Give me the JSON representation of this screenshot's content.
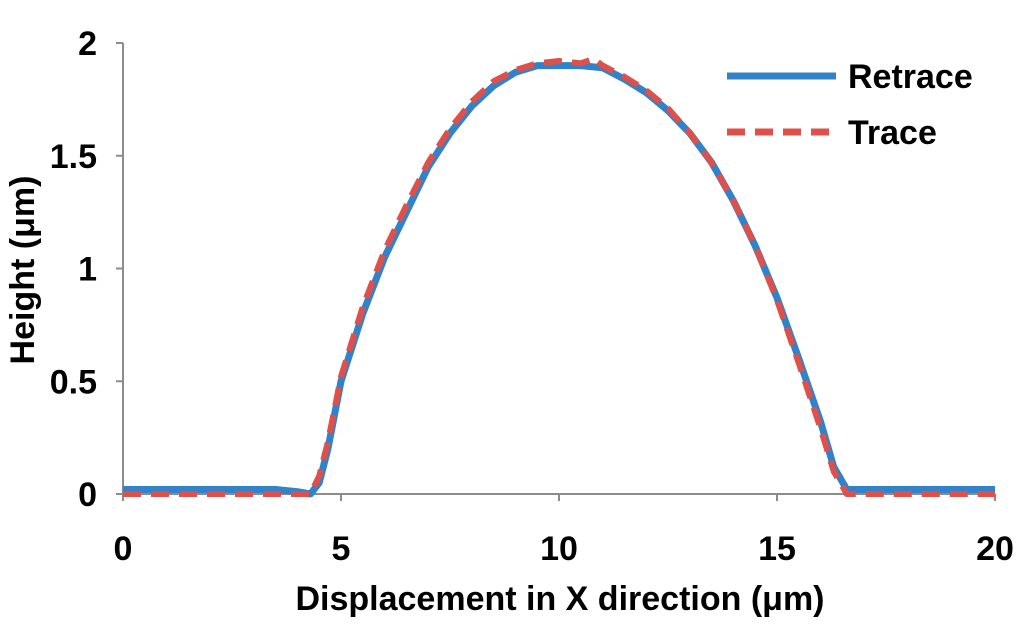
{
  "chart_data": {
    "type": "line",
    "xlabel": "Displacement  in X direction (μm)",
    "ylabel": "Height  (μm)",
    "xlim": [
      0,
      20
    ],
    "ylim": [
      0,
      2
    ],
    "xticks": [
      0,
      5,
      10,
      15,
      20
    ],
    "yticks": [
      0,
      0.5,
      1,
      1.5,
      2
    ],
    "ytick_labels": [
      "0",
      "0.5",
      "1",
      "1.5",
      "2"
    ],
    "grid": false,
    "legend_position": "top-right",
    "series": [
      {
        "name": "Retrace",
        "color": "#3182c8",
        "style": "solid",
        "x": [
          0,
          3.5,
          4.0,
          4.3,
          4.5,
          4.7,
          5.0,
          5.5,
          6.0,
          6.5,
          7.0,
          7.5,
          8.0,
          8.5,
          9.0,
          9.5,
          10.0,
          10.5,
          11.0,
          11.5,
          12.0,
          12.5,
          13.0,
          13.5,
          14.0,
          14.5,
          15.0,
          15.5,
          16.0,
          16.3,
          16.6,
          17.0,
          20.0
        ],
        "y": [
          0.02,
          0.02,
          0.01,
          0.0,
          0.05,
          0.2,
          0.5,
          0.8,
          1.05,
          1.25,
          1.45,
          1.6,
          1.72,
          1.81,
          1.87,
          1.9,
          1.9,
          1.9,
          1.89,
          1.84,
          1.78,
          1.7,
          1.6,
          1.47,
          1.3,
          1.1,
          0.87,
          0.6,
          0.32,
          0.12,
          0.02,
          0.02,
          0.02
        ]
      },
      {
        "name": "Trace",
        "color": "#e0504a",
        "style": "dashed",
        "x": [
          0,
          3.5,
          4.0,
          4.3,
          4.5,
          4.7,
          5.0,
          5.5,
          6.0,
          6.5,
          7.0,
          7.5,
          8.0,
          8.5,
          9.0,
          9.5,
          10.0,
          10.5,
          10.8,
          11.0,
          11.5,
          12.0,
          12.5,
          13.0,
          13.5,
          14.0,
          14.5,
          15.0,
          15.5,
          16.0,
          16.3,
          16.6,
          17.0,
          20.0
        ],
        "y": [
          0.0,
          0.0,
          0.0,
          0.0,
          0.08,
          0.23,
          0.52,
          0.83,
          1.08,
          1.28,
          1.47,
          1.62,
          1.74,
          1.83,
          1.88,
          1.91,
          1.92,
          1.91,
          1.93,
          1.9,
          1.85,
          1.79,
          1.71,
          1.6,
          1.47,
          1.3,
          1.1,
          0.86,
          0.58,
          0.29,
          0.1,
          0.0,
          0.0,
          0.0
        ]
      }
    ]
  }
}
